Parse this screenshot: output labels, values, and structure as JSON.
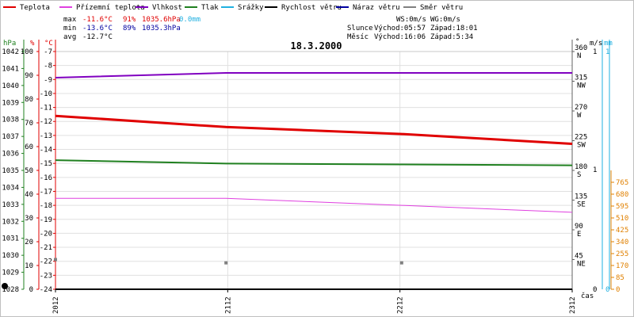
{
  "legend": [
    {
      "label": "Teplota",
      "color": "#e00000"
    },
    {
      "label": "Přízemní teplota",
      "color": "#e040e0"
    },
    {
      "label": "Vlhkost",
      "color": "#8000c0"
    },
    {
      "label": "Tlak",
      "color": "#208020"
    },
    {
      "label": "Srážky",
      "color": "#20b0e0"
    },
    {
      "label": "Rychlost větru",
      "color": "#000000"
    },
    {
      "label": "Náraz větru",
      "color": "#0000a0"
    },
    {
      "label": "Směr větru",
      "color": "#808080"
    }
  ],
  "stats": {
    "max_label": "max",
    "max_temp": "-11.6°C",
    "max_hum": "91%",
    "max_press": "1035.6hPa",
    "max_rain": "0.0mm",
    "min_label": "min",
    "min_temp": "-13.6°C",
    "min_hum": "89%",
    "min_press": "1035.3hPa",
    "avg_label": "avg",
    "avg_temp": "-12.7°C"
  },
  "info": {
    "ws": "WS:0m/s",
    "wg": "WG:0m/s",
    "sun_label": "Slunce",
    "sunrise": "Východ:05:57",
    "sunset": "Západ:18:01",
    "moon_label": "Měsíc",
    "moonrise": "Východ:16:06",
    "moonset": "Západ:5:34"
  },
  "chart_data": {
    "type": "line",
    "title": "18.3.2000",
    "xlabel": "čas",
    "x": [
      "2012",
      "2112",
      "2212",
      "2312"
    ],
    "units": {
      "pressure": "hPa",
      "humidity": "%",
      "temperature": "°C",
      "direction": "°",
      "wind": "m/s",
      "rain": "mm"
    },
    "axes": {
      "pressure": {
        "range": [
          1028,
          1042
        ],
        "ticks": [
          1028,
          1029,
          1030,
          1031,
          1032,
          1033,
          1034,
          1035,
          1036,
          1037,
          1038,
          1039,
          1040,
          1041,
          1042
        ]
      },
      "humidity": {
        "range": [
          0,
          100
        ],
        "ticks": [
          0,
          10,
          20,
          30,
          40,
          50,
          60,
          70,
          80,
          90,
          100
        ]
      },
      "temperature": {
        "range": [
          -24,
          -7
        ],
        "ticks": [
          -24,
          -23,
          -22,
          -21,
          -20,
          -19,
          -18,
          -17,
          -16,
          -15,
          -14,
          -13,
          -12,
          -11,
          -10,
          -9,
          -8,
          -7
        ]
      },
      "direction": {
        "range": [
          0,
          360
        ],
        "ticks": [
          {
            "value": 45,
            "label": "NE"
          },
          {
            "value": 90,
            "label": "E"
          },
          {
            "value": 135,
            "label": "SE"
          },
          {
            "value": 180,
            "label": "S"
          },
          {
            "value": 225,
            "label": "SW"
          },
          {
            "value": 270,
            "label": "W"
          },
          {
            "value": 315,
            "label": "NW"
          },
          {
            "value": 360,
            "label": "N"
          }
        ]
      },
      "wind": {
        "range": [
          0,
          1
        ],
        "ticks": [
          0,
          1
        ]
      },
      "rain": {
        "range": [
          0,
          1
        ],
        "ticks": [
          0,
          1
        ]
      },
      "rain_rate": {
        "range": [
          0,
          850
        ],
        "ticks": [
          0,
          85,
          170,
          255,
          340,
          425,
          510,
          595,
          680,
          765
        ]
      }
    },
    "series": [
      {
        "name": "Teplota",
        "axis": "temperature",
        "color": "#e00000",
        "width": 3,
        "points": [
          [
            0,
            -11.6
          ],
          [
            0.33,
            -12.4
          ],
          [
            0.67,
            -12.9
          ],
          [
            1,
            -13.6
          ]
        ]
      },
      {
        "name": "Přízemní teplota",
        "axis": "temperature",
        "color": "#e040e0",
        "width": 1,
        "points": [
          [
            0,
            -17.5
          ],
          [
            0.33,
            -17.5
          ],
          [
            0.67,
            -18.0
          ],
          [
            1,
            -18.5
          ]
        ]
      },
      {
        "name": "Vlhkost",
        "axis": "humidity",
        "color": "#8000c0",
        "width": 2,
        "points": [
          [
            0,
            89
          ],
          [
            0.33,
            91
          ],
          [
            0.67,
            91
          ],
          [
            1,
            91
          ]
        ]
      },
      {
        "name": "Tlak",
        "axis": "pressure",
        "color": "#208020",
        "width": 2,
        "points": [
          [
            0,
            1035.6
          ],
          [
            0.33,
            1035.4
          ],
          [
            0.67,
            1035.35
          ],
          [
            1,
            1035.3
          ]
        ]
      },
      {
        "name": "Rychlost větru",
        "axis": "wind",
        "color": "#000000",
        "width": 2,
        "points": [
          [
            0,
            0
          ],
          [
            1,
            0
          ]
        ]
      }
    ],
    "direction_points": [
      [
        0,
        45
      ],
      [
        0.33,
        40
      ],
      [
        0.67,
        40
      ]
    ]
  }
}
